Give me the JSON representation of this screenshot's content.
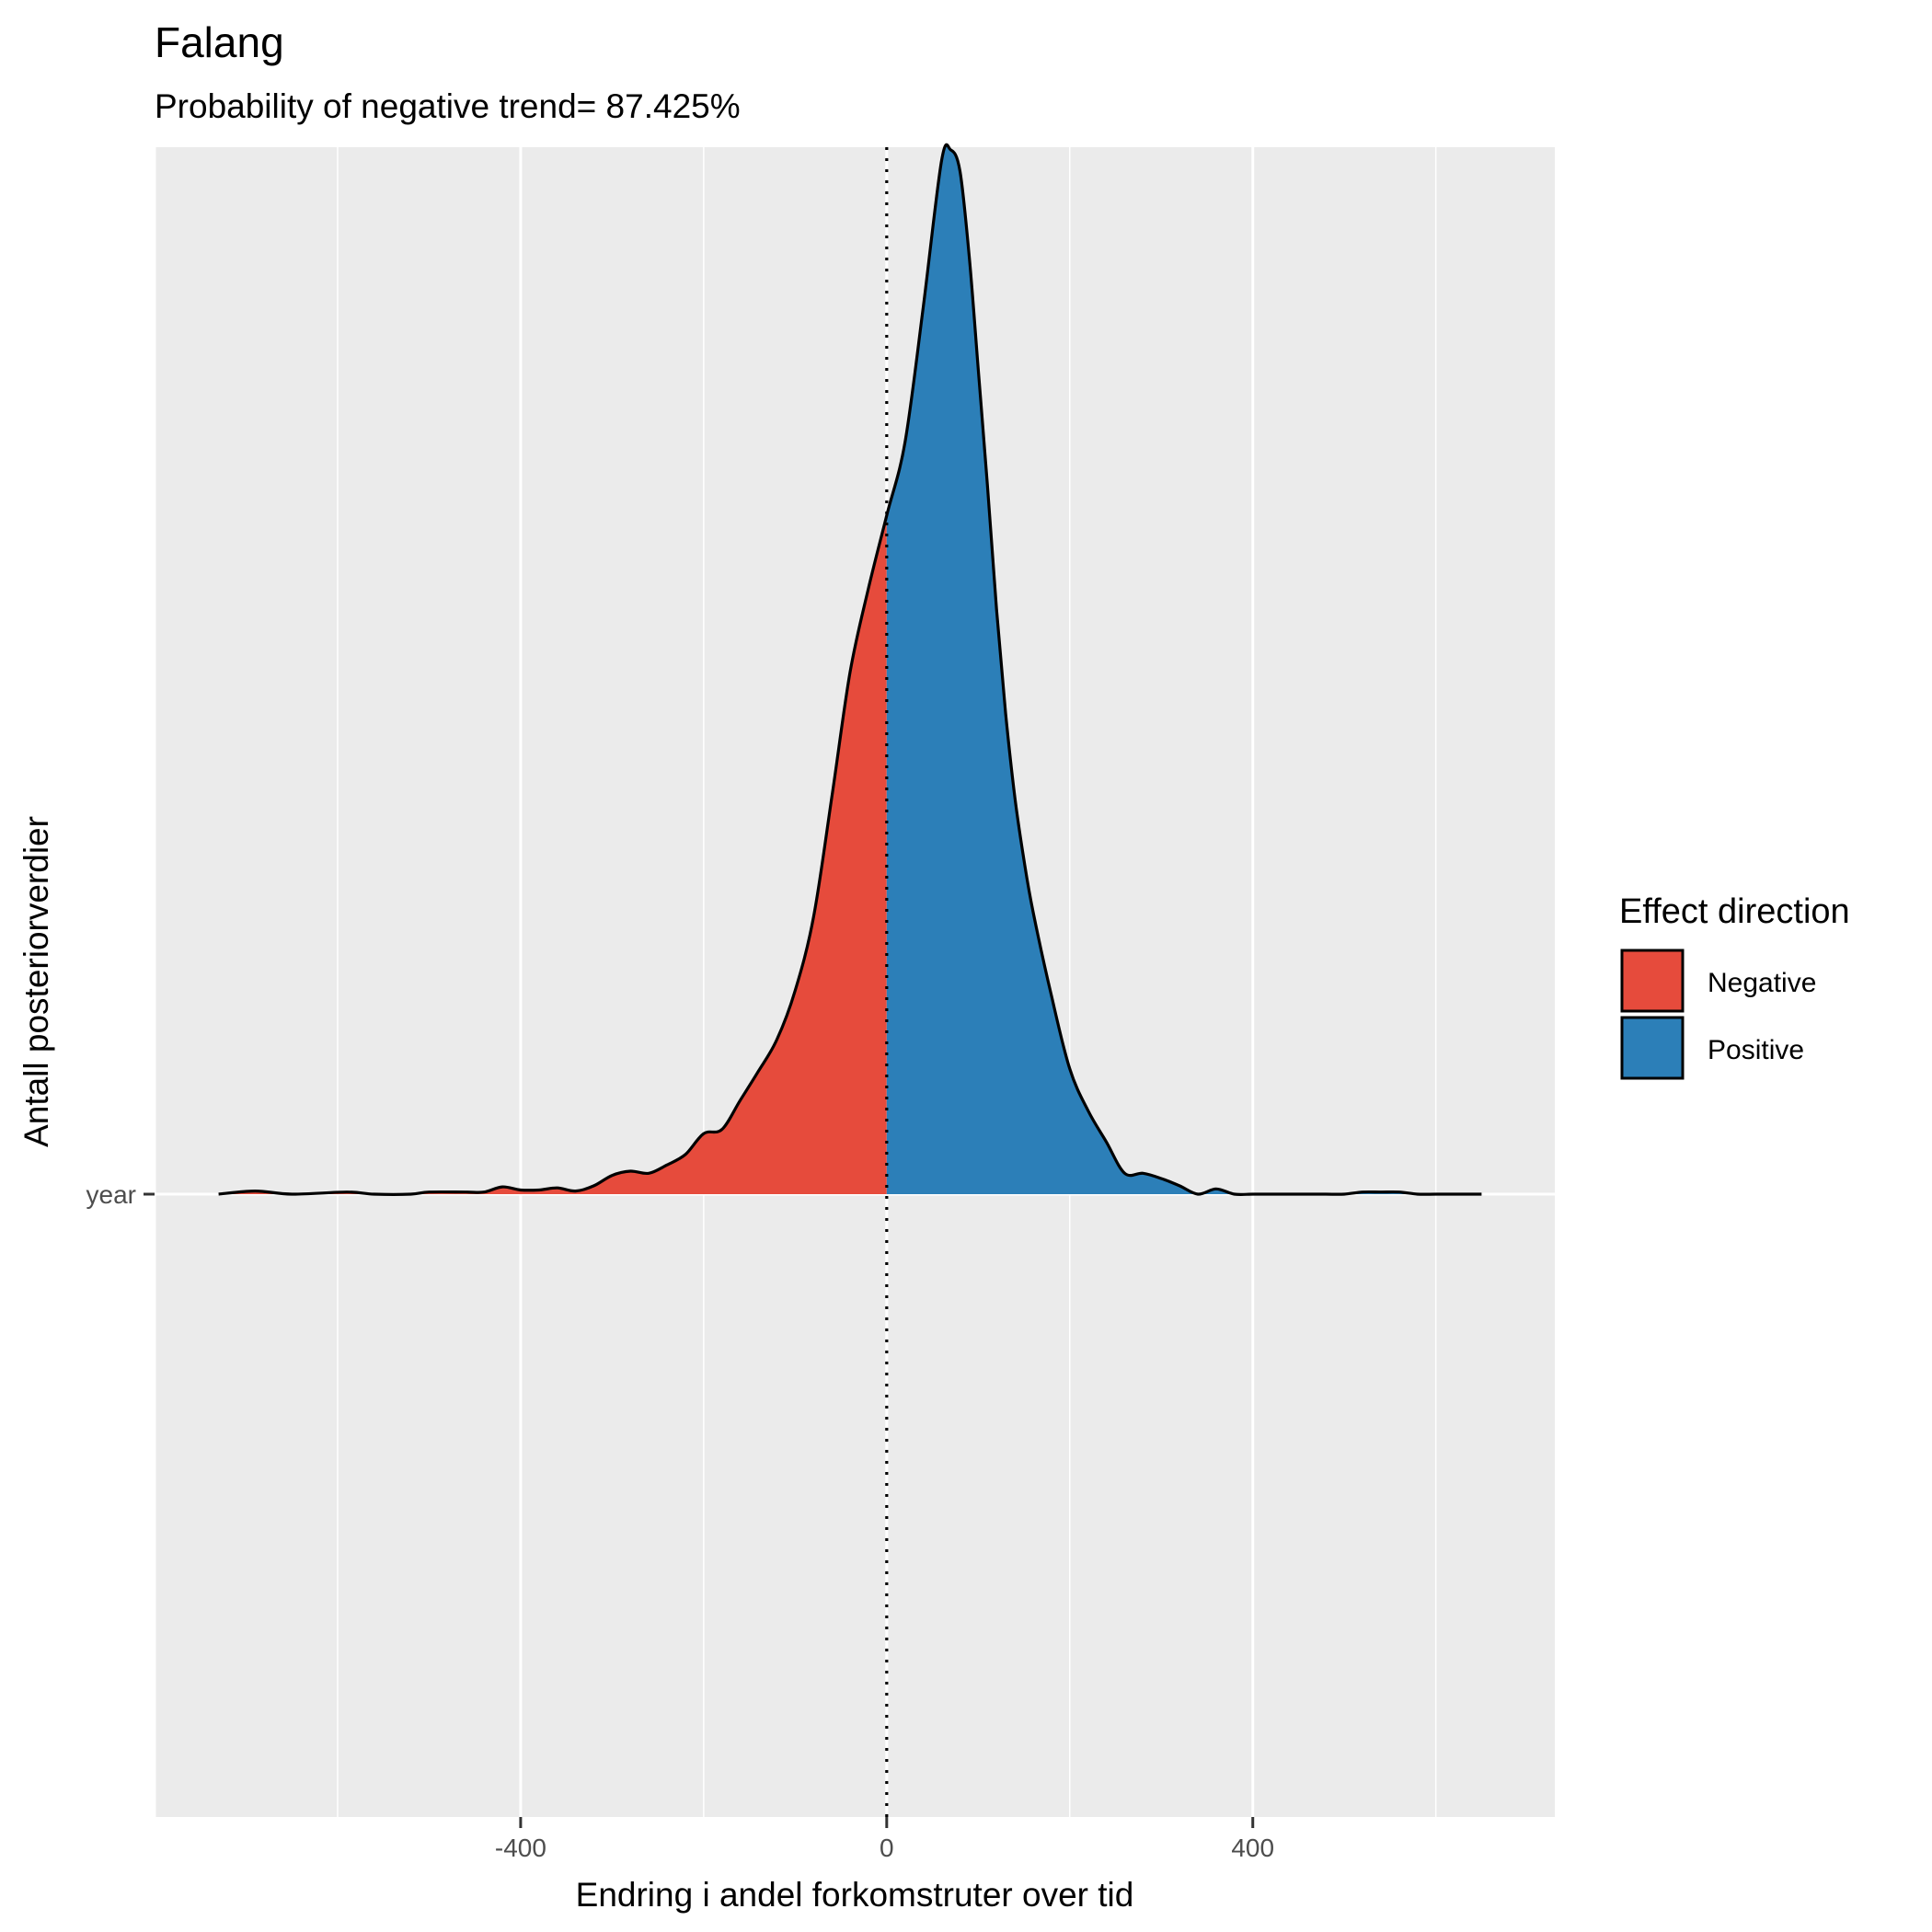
{
  "chart_data": {
    "type": "area",
    "title": "Falang",
    "subtitle": "Probability of negative trend= 87.425%",
    "xlabel": "Endring i andel forkomstruter over tid",
    "ylabel": "Antall posteriorverdier",
    "xlim": [
      -800,
      730
    ],
    "x_ticks": [
      -400,
      0,
      400
    ],
    "x_tick_labels": [
      "-400",
      "0",
      "400"
    ],
    "y_tick_labels": [
      "year"
    ],
    "grid": true,
    "reference_line_x": 0,
    "legend": {
      "title": "Effect direction",
      "placement": "right",
      "entries": [
        {
          "label": "Negative",
          "color": "#e64b3c"
        },
        {
          "label": "Positive",
          "color": "#2c7fb8"
        }
      ]
    },
    "series": [
      {
        "values": {
          "x": [
            -730,
            -690,
            -650,
            -590,
            -560,
            -520,
            -500,
            -460,
            -440,
            -420,
            -400,
            -380,
            -360,
            -340,
            -320,
            -300,
            -280,
            -260,
            -240,
            -220,
            -200,
            -180,
            -160,
            -140,
            -120,
            -100,
            -80,
            -60,
            -40,
            -20,
            0,
            20,
            40,
            60,
            70,
            80,
            90,
            100,
            110,
            120,
            130,
            140,
            150,
            160,
            180,
            200,
            220,
            240,
            260,
            280,
            300,
            320,
            340,
            360,
            380,
            400,
            420,
            440,
            460,
            480,
            500,
            520,
            540,
            560,
            580,
            600,
            620,
            650
          ],
          "y": [
            0.0,
            0.003,
            0.0,
            0.002,
            0.0,
            0.0,
            0.002,
            0.002,
            0.002,
            0.007,
            0.004,
            0.004,
            0.006,
            0.003,
            0.008,
            0.018,
            0.022,
            0.02,
            0.028,
            0.038,
            0.058,
            0.062,
            0.09,
            0.118,
            0.148,
            0.195,
            0.265,
            0.38,
            0.5,
            0.58,
            0.65,
            0.72,
            0.85,
            0.99,
            1.0,
            0.98,
            0.9,
            0.79,
            0.68,
            0.56,
            0.46,
            0.38,
            0.32,
            0.27,
            0.19,
            0.12,
            0.08,
            0.05,
            0.02,
            0.02,
            0.015,
            0.008,
            0.0,
            0.005,
            0.0,
            0.0,
            0.0,
            0.0,
            0.0,
            0.0,
            0.0,
            0.002,
            0.002,
            0.002,
            0.0,
            0.0,
            0.0,
            0.0
          ]
        }
      }
    ]
  }
}
